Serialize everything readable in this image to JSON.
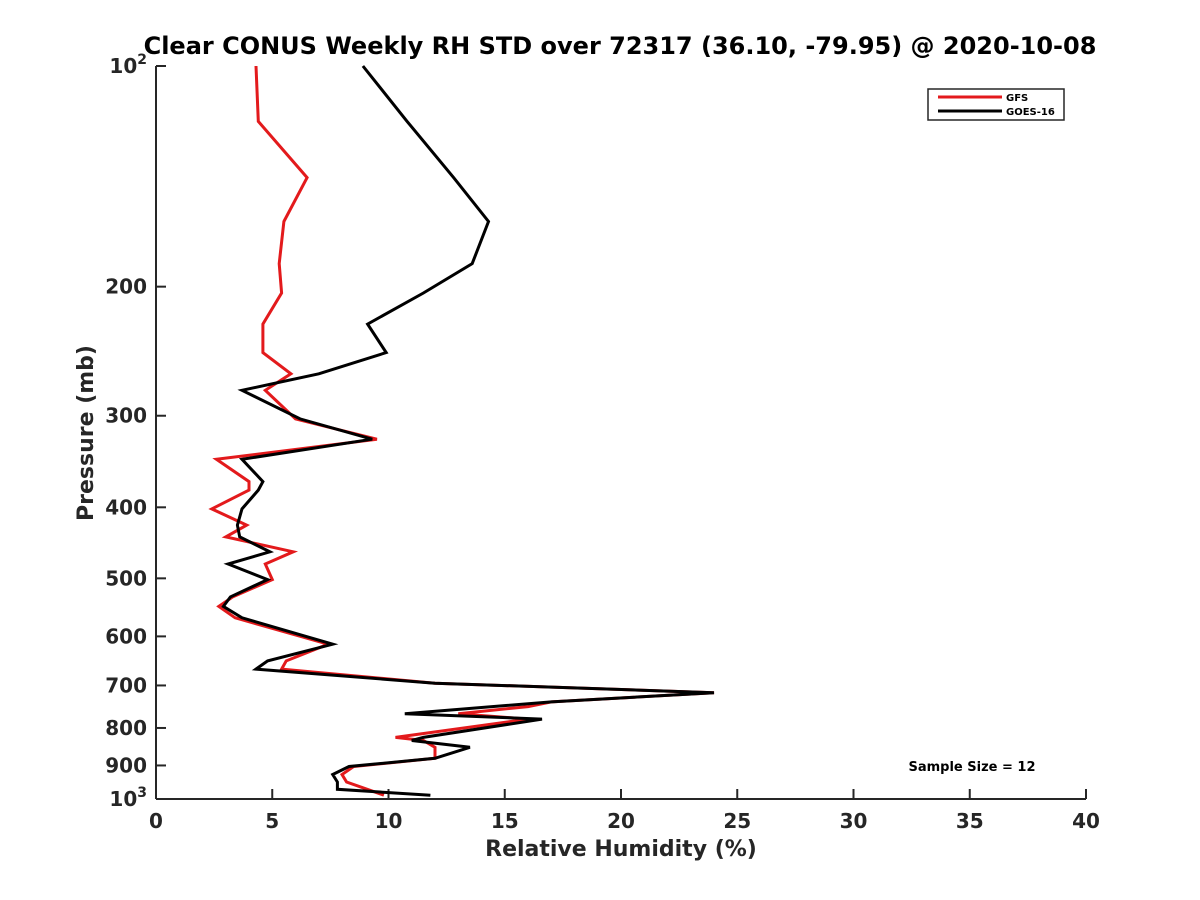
{
  "chart_data": {
    "type": "line",
    "title": "Clear CONUS Weekly RH STD over 72317 (36.10, -79.95) @ 2020-10-08",
    "xlabel": "Relative Humidity (%)",
    "ylabel": "Pressure (mb)",
    "xlim": [
      0,
      40
    ],
    "ylim": [
      100,
      1000
    ],
    "y_scale": "log",
    "y_reversed": true,
    "grid": false,
    "legend_position": "top-right",
    "x_ticks": [
      0,
      5,
      10,
      15,
      20,
      25,
      30,
      35,
      40
    ],
    "x_tick_labels": [
      "0",
      "5",
      "10",
      "15",
      "20",
      "25",
      "30",
      "35",
      "40"
    ],
    "y_ticks": [
      100,
      200,
      300,
      400,
      500,
      600,
      700,
      800,
      900,
      1000
    ],
    "y_tick_labels": [
      {
        "base": "10",
        "exp": "2"
      },
      {
        "base": "200",
        "exp": ""
      },
      {
        "base": "300",
        "exp": ""
      },
      {
        "base": "400",
        "exp": ""
      },
      {
        "base": "500",
        "exp": ""
      },
      {
        "base": "600",
        "exp": ""
      },
      {
        "base": "700",
        "exp": ""
      },
      {
        "base": "800",
        "exp": ""
      },
      {
        "base": "900",
        "exp": ""
      },
      {
        "base": "10",
        "exp": "3"
      }
    ],
    "annotation": "Sample Size = 12",
    "series": [
      {
        "name": "GFS",
        "color": "#e31a1c",
        "points": [
          [
            4.3,
            100
          ],
          [
            4.4,
            119
          ],
          [
            6.5,
            142
          ],
          [
            5.5,
            163
          ],
          [
            5.3,
            186
          ],
          [
            5.4,
            204
          ],
          [
            4.6,
            225
          ],
          [
            4.6,
            246
          ],
          [
            5.8,
            263
          ],
          [
            4.7,
            277
          ],
          [
            6.0,
            303
          ],
          [
            9.5,
            323
          ],
          [
            2.6,
            344
          ],
          [
            4.0,
            369
          ],
          [
            4.0,
            379
          ],
          [
            2.4,
            402
          ],
          [
            3.9,
            423
          ],
          [
            3.0,
            439
          ],
          [
            5.9,
            460
          ],
          [
            4.7,
            478
          ],
          [
            5.0,
            502
          ],
          [
            3.3,
            530
          ],
          [
            2.7,
            546
          ],
          [
            3.4,
            566
          ],
          [
            7.4,
            615
          ],
          [
            5.6,
            648
          ],
          [
            5.4,
            665
          ],
          [
            12.0,
            695
          ],
          [
            24.0,
            716
          ],
          [
            17.0,
            737
          ],
          [
            16.0,
            748
          ],
          [
            13.0,
            765
          ],
          [
            16.0,
            778
          ],
          [
            10.3,
            824
          ],
          [
            11.5,
            832
          ],
          [
            12.0,
            850
          ],
          [
            12.0,
            880
          ],
          [
            8.5,
            903
          ],
          [
            8.0,
            926
          ],
          [
            8.2,
            948
          ],
          [
            9.8,
            988
          ]
        ]
      },
      {
        "name": "GOES-16",
        "color": "#000000",
        "points": [
          [
            8.9,
            100
          ],
          [
            10.8,
            119
          ],
          [
            12.8,
            142
          ],
          [
            14.3,
            163
          ],
          [
            13.6,
            186
          ],
          [
            11.5,
            204
          ],
          [
            9.1,
            225
          ],
          [
            9.9,
            246
          ],
          [
            7.0,
            263
          ],
          [
            3.7,
            277
          ],
          [
            6.2,
            303
          ],
          [
            9.3,
            323
          ],
          [
            3.7,
            344
          ],
          [
            4.6,
            369
          ],
          [
            4.4,
            379
          ],
          [
            3.7,
            402
          ],
          [
            3.5,
            423
          ],
          [
            3.6,
            439
          ],
          [
            4.9,
            460
          ],
          [
            3.1,
            478
          ],
          [
            4.8,
            502
          ],
          [
            3.2,
            530
          ],
          [
            2.9,
            546
          ],
          [
            3.7,
            566
          ],
          [
            7.6,
            615
          ],
          [
            4.8,
            648
          ],
          [
            4.3,
            665
          ],
          [
            12.0,
            695
          ],
          [
            24.0,
            716
          ],
          [
            17.0,
            737
          ],
          [
            10.7,
            765
          ],
          [
            16.6,
            778
          ],
          [
            11.5,
            824
          ],
          [
            11.0,
            832
          ],
          [
            13.5,
            850
          ],
          [
            12.0,
            880
          ],
          [
            8.3,
            903
          ],
          [
            7.6,
            926
          ],
          [
            7.8,
            948
          ],
          [
            7.8,
            970
          ],
          [
            11.8,
            988
          ]
        ]
      }
    ]
  }
}
